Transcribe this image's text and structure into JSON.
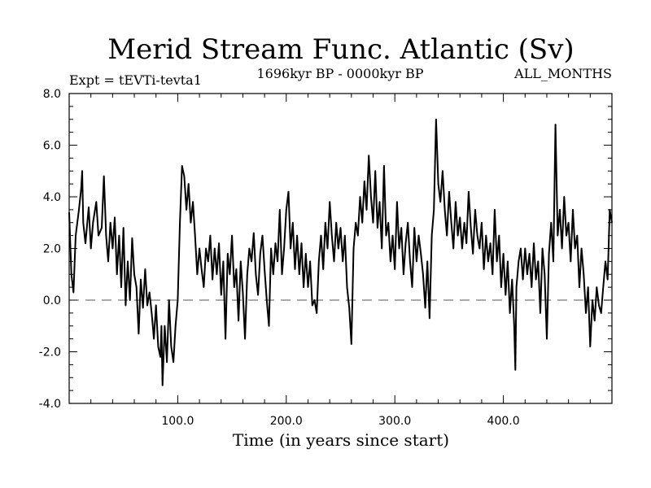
{
  "chart_data": {
    "type": "line",
    "title": "Merid Stream Func. Atlantic (Sv)",
    "subtitle": "1696kyr BP - 0000kyr BP",
    "annotation_left": "Expt = tEVTi-tevta1",
    "annotation_right": "ALL_MONTHS",
    "xlabel": "Time (in years since start)",
    "ylabel": "",
    "xlim": [
      0,
      500
    ],
    "ylim": [
      -4.0,
      8.0
    ],
    "xticks": [
      100,
      200,
      300,
      400
    ],
    "xtick_labels": [
      "100.0",
      "200.0",
      "300.0",
      "400.0"
    ],
    "yticks": [
      -4,
      -2,
      0,
      2,
      4,
      6,
      8
    ],
    "ytick_labels": [
      "-4.0",
      "-2.0",
      "0.0",
      "2.0",
      "4.0",
      "6.0",
      "8.0"
    ],
    "zero_line": 0,
    "grid": false,
    "series": [
      {
        "name": "Merid Stream Func. Atlantic",
        "keypoints": [
          [
            0,
            3.4
          ],
          [
            2,
            1.0
          ],
          [
            4,
            0.3
          ],
          [
            6,
            2.5
          ],
          [
            9,
            3.5
          ],
          [
            11,
            4.3
          ],
          [
            12,
            5.0
          ],
          [
            13,
            3.0
          ],
          [
            15,
            2.2
          ],
          [
            18,
            3.6
          ],
          [
            20,
            2.0
          ],
          [
            22,
            3.0
          ],
          [
            25,
            3.8
          ],
          [
            27,
            2.5
          ],
          [
            30,
            2.8
          ],
          [
            32,
            4.8
          ],
          [
            34,
            2.5
          ],
          [
            36,
            1.5
          ],
          [
            38,
            3.0
          ],
          [
            40,
            2.0
          ],
          [
            42,
            3.2
          ],
          [
            44,
            1.0
          ],
          [
            46,
            2.5
          ],
          [
            48,
            0.5
          ],
          [
            50,
            2.8
          ],
          [
            52,
            -0.2
          ],
          [
            54,
            1.5
          ],
          [
            56,
            0.0
          ],
          [
            58,
            2.4
          ],
          [
            60,
            1.0
          ],
          [
            62,
            0.5
          ],
          [
            64,
            -1.3
          ],
          [
            66,
            0.8
          ],
          [
            68,
            -0.3
          ],
          [
            70,
            1.2
          ],
          [
            72,
            -0.2
          ],
          [
            74,
            0.3
          ],
          [
            76,
            -0.5
          ],
          [
            78,
            -1.5
          ],
          [
            80,
            -0.2
          ],
          [
            82,
            -1.8
          ],
          [
            84,
            -2.2
          ],
          [
            85,
            -1.0
          ],
          [
            86,
            -3.3
          ],
          [
            88,
            -1.0
          ],
          [
            90,
            -2.4
          ],
          [
            92,
            0.0
          ],
          [
            94,
            -1.8
          ],
          [
            96,
            -2.4
          ],
          [
            98,
            -1.0
          ],
          [
            100,
            0.0
          ],
          [
            102,
            3.0
          ],
          [
            104,
            5.2
          ],
          [
            106,
            4.8
          ],
          [
            108,
            3.5
          ],
          [
            110,
            4.5
          ],
          [
            112,
            3.0
          ],
          [
            114,
            3.8
          ],
          [
            116,
            2.5
          ],
          [
            118,
            1.0
          ],
          [
            120,
            2.0
          ],
          [
            122,
            1.2
          ],
          [
            124,
            0.5
          ],
          [
            126,
            2.0
          ],
          [
            128,
            1.5
          ],
          [
            130,
            2.5
          ],
          [
            132,
            0.8
          ],
          [
            134,
            2.0
          ],
          [
            136,
            1.0
          ],
          [
            138,
            2.2
          ],
          [
            140,
            0.2
          ],
          [
            142,
            1.5
          ],
          [
            144,
            -1.5
          ],
          [
            146,
            1.8
          ],
          [
            148,
            1.0
          ],
          [
            150,
            2.5
          ],
          [
            152,
            0.5
          ],
          [
            154,
            1.2
          ],
          [
            156,
            -0.8
          ],
          [
            158,
            1.5
          ],
          [
            160,
            0.3
          ],
          [
            162,
            -1.5
          ],
          [
            164,
            1.0
          ],
          [
            166,
            2.0
          ],
          [
            168,
            1.5
          ],
          [
            170,
            2.6
          ],
          [
            172,
            1.0
          ],
          [
            174,
            0.2
          ],
          [
            176,
            1.8
          ],
          [
            178,
            2.5
          ],
          [
            180,
            1.2
          ],
          [
            182,
            0.0
          ],
          [
            184,
            -1.0
          ],
          [
            186,
            2.0
          ],
          [
            188,
            1.0
          ],
          [
            190,
            2.2
          ],
          [
            192,
            1.5
          ],
          [
            194,
            3.5
          ],
          [
            196,
            1.0
          ],
          [
            198,
            2.0
          ],
          [
            200,
            3.5
          ],
          [
            202,
            4.2
          ],
          [
            204,
            2.0
          ],
          [
            206,
            3.0
          ],
          [
            208,
            1.2
          ],
          [
            210,
            2.5
          ],
          [
            212,
            1.0
          ],
          [
            214,
            2.2
          ],
          [
            216,
            0.5
          ],
          [
            218,
            1.8
          ],
          [
            220,
            0.5
          ],
          [
            222,
            1.5
          ],
          [
            224,
            -0.2
          ],
          [
            226,
            0.0
          ],
          [
            228,
            -0.5
          ],
          [
            230,
            1.5
          ],
          [
            232,
            2.5
          ],
          [
            234,
            1.2
          ],
          [
            236,
            3.0
          ],
          [
            238,
            2.0
          ],
          [
            240,
            3.8
          ],
          [
            242,
            2.5
          ],
          [
            244,
            1.5
          ],
          [
            246,
            3.0
          ],
          [
            248,
            2.0
          ],
          [
            250,
            2.8
          ],
          [
            252,
            1.5
          ],
          [
            254,
            2.5
          ],
          [
            256,
            0.5
          ],
          [
            258,
            -0.3
          ],
          [
            260,
            -1.7
          ],
          [
            262,
            2.0
          ],
          [
            264,
            3.0
          ],
          [
            266,
            2.5
          ],
          [
            268,
            4.0
          ],
          [
            270,
            3.0
          ],
          [
            272,
            4.6
          ],
          [
            274,
            3.5
          ],
          [
            276,
            5.6
          ],
          [
            278,
            4.0
          ],
          [
            280,
            3.0
          ],
          [
            282,
            5.0
          ],
          [
            284,
            2.8
          ],
          [
            286,
            3.8
          ],
          [
            288,
            2.0
          ],
          [
            290,
            5.2
          ],
          [
            292,
            2.5
          ],
          [
            294,
            3.0
          ],
          [
            296,
            1.5
          ],
          [
            298,
            2.5
          ],
          [
            300,
            1.2
          ],
          [
            302,
            3.8
          ],
          [
            304,
            2.0
          ],
          [
            306,
            2.8
          ],
          [
            308,
            1.0
          ],
          [
            310,
            2.2
          ],
          [
            312,
            3.0
          ],
          [
            314,
            1.5
          ],
          [
            316,
            0.5
          ],
          [
            318,
            2.8
          ],
          [
            320,
            1.5
          ],
          [
            322,
            2.5
          ],
          [
            324,
            1.8
          ],
          [
            326,
            1.0
          ],
          [
            328,
            -0.3
          ],
          [
            330,
            1.5
          ],
          [
            332,
            -0.7
          ],
          [
            334,
            2.5
          ],
          [
            336,
            3.5
          ],
          [
            338,
            7.0
          ],
          [
            340,
            4.5
          ],
          [
            342,
            3.8
          ],
          [
            344,
            5.0
          ],
          [
            346,
            3.5
          ],
          [
            348,
            2.5
          ],
          [
            350,
            4.2
          ],
          [
            352,
            3.0
          ],
          [
            354,
            2.0
          ],
          [
            356,
            3.8
          ],
          [
            358,
            2.5
          ],
          [
            360,
            3.2
          ],
          [
            362,
            2.0
          ],
          [
            364,
            3.0
          ],
          [
            366,
            2.2
          ],
          [
            368,
            4.2
          ],
          [
            370,
            2.8
          ],
          [
            372,
            1.8
          ],
          [
            374,
            3.5
          ],
          [
            376,
            2.5
          ],
          [
            378,
            2.0
          ],
          [
            380,
            3.0
          ],
          [
            382,
            1.2
          ],
          [
            384,
            2.5
          ],
          [
            386,
            1.5
          ],
          [
            388,
            2.2
          ],
          [
            390,
            1.0
          ],
          [
            392,
            3.5
          ],
          [
            394,
            1.5
          ],
          [
            396,
            2.5
          ],
          [
            398,
            0.5
          ],
          [
            400,
            1.8
          ],
          [
            402,
            0.2
          ],
          [
            404,
            1.5
          ],
          [
            406,
            -0.5
          ],
          [
            408,
            0.8
          ],
          [
            410,
            -1.0
          ],
          [
            411,
            -2.7
          ],
          [
            412,
            0.5
          ],
          [
            414,
            1.5
          ],
          [
            416,
            2.0
          ],
          [
            418,
            0.8
          ],
          [
            420,
            2.0
          ],
          [
            422,
            1.0
          ],
          [
            424,
            1.8
          ],
          [
            426,
            0.5
          ],
          [
            428,
            2.2
          ],
          [
            430,
            0.8
          ],
          [
            432,
            1.5
          ],
          [
            434,
            -0.5
          ],
          [
            436,
            2.0
          ],
          [
            438,
            1.0
          ],
          [
            440,
            -1.5
          ],
          [
            442,
            1.8
          ],
          [
            444,
            3.0
          ],
          [
            446,
            1.5
          ],
          [
            448,
            6.8
          ],
          [
            450,
            2.5
          ],
          [
            452,
            3.5
          ],
          [
            454,
            2.0
          ],
          [
            456,
            4.0
          ],
          [
            458,
            2.5
          ],
          [
            460,
            3.0
          ],
          [
            462,
            1.5
          ],
          [
            464,
            3.5
          ],
          [
            466,
            2.0
          ],
          [
            468,
            2.5
          ],
          [
            470,
            0.5
          ],
          [
            472,
            2.0
          ],
          [
            474,
            1.0
          ],
          [
            476,
            -0.5
          ],
          [
            478,
            0.5
          ],
          [
            480,
            -1.8
          ],
          [
            482,
            0.0
          ],
          [
            484,
            -0.8
          ],
          [
            486,
            0.5
          ],
          [
            488,
            -0.2
          ],
          [
            490,
            -0.5
          ],
          [
            492,
            0.5
          ],
          [
            494,
            1.5
          ],
          [
            496,
            0.8
          ],
          [
            498,
            3.5
          ],
          [
            500,
            3.0
          ]
        ]
      }
    ]
  }
}
